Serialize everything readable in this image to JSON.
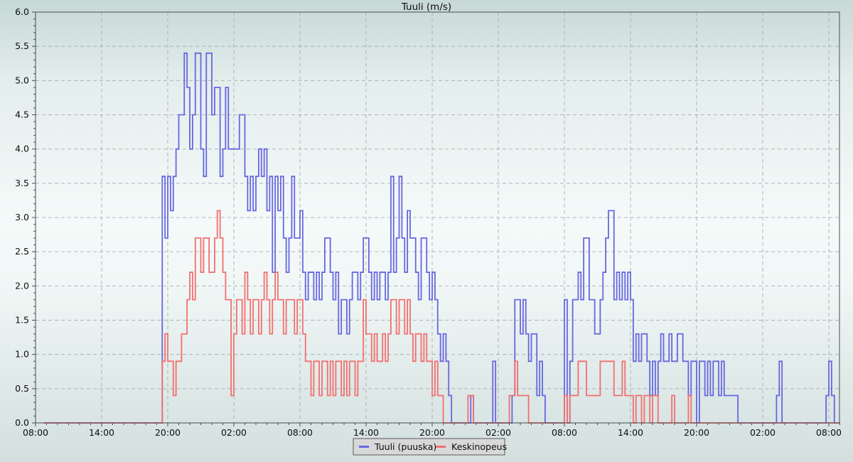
{
  "chart_data": {
    "type": "line",
    "line_style": "step-after",
    "title": "Tuuli (m/s)",
    "xlabel": "",
    "ylabel": "",
    "ylim": [
      0,
      6
    ],
    "y_major_step": 0.5,
    "y_minor_step": 0.1,
    "y_tick_labels": [
      "0.0",
      "0.5",
      "1.0",
      "1.5",
      "2.0",
      "2.5",
      "3.0",
      "3.5",
      "4.0",
      "4.5",
      "5.0",
      "5.5",
      "6.0"
    ],
    "x_tick_labels": [
      "08:00",
      "14:00",
      "20:00",
      "02:00",
      "08:00",
      "14:00",
      "20:00",
      "02:00",
      "08:00",
      "14:00",
      "20:00",
      "02:00",
      "08:00"
    ],
    "x_major_interval_hours": 6,
    "x_minor_interval_hours": 1,
    "x_span_hours": 73,
    "sample_interval_minutes": 15,
    "grid": "dashed major gridlines both axes",
    "legend_position": "bottom-center",
    "background": {
      "top": "#c7d8d7",
      "middle": "#f4faf9",
      "bottom": "#d3e0df"
    },
    "axis_color": "#454c4c",
    "grid_color": "#a3abab",
    "series": [
      {
        "name": "Tuuli (puuska)",
        "color": "#6767e0",
        "values": [
          null,
          null,
          null,
          0,
          0,
          0,
          0,
          0,
          0,
          0,
          0,
          0,
          0,
          0,
          0,
          0,
          0,
          0,
          0,
          0,
          0,
          0,
          0,
          0,
          0,
          0,
          0,
          0,
          0,
          0,
          0,
          0,
          0,
          0,
          0,
          0,
          0,
          0,
          0,
          0,
          0,
          0,
          0,
          0,
          0,
          0,
          3.6,
          2.7,
          3.6,
          3.1,
          3.6,
          4,
          4.5,
          4.5,
          5.4,
          4.9,
          4,
          4.5,
          5.4,
          5.4,
          4,
          3.6,
          5.4,
          5.4,
          4.5,
          4.9,
          4.9,
          3.6,
          4,
          4.9,
          4,
          4,
          4,
          4,
          4.5,
          4.5,
          3.6,
          3.1,
          3.6,
          3.1,
          3.6,
          4,
          3.6,
          4,
          3.1,
          3.6,
          2.2,
          3.6,
          3.1,
          3.6,
          2.7,
          2.2,
          2.7,
          3.6,
          2.7,
          2.7,
          3.1,
          2.2,
          1.8,
          2.2,
          2.2,
          1.8,
          2.2,
          1.8,
          2.2,
          2.7,
          2.7,
          2.2,
          1.8,
          2.2,
          1.3,
          1.8,
          1.8,
          1.3,
          1.8,
          2.2,
          2.2,
          1.8,
          2.2,
          2.7,
          2.7,
          2.2,
          1.8,
          2.2,
          1.8,
          2.2,
          2.2,
          1.8,
          2.2,
          3.6,
          2.2,
          2.7,
          3.6,
          2.7,
          2.2,
          3.1,
          2.7,
          2.7,
          2.2,
          1.8,
          2.7,
          2.7,
          2.2,
          1.8,
          2.2,
          1.8,
          1.3,
          0.9,
          1.3,
          0.9,
          0.4,
          0,
          0,
          0,
          0,
          0,
          0,
          0,
          0.4,
          0,
          0,
          0,
          0,
          0,
          0,
          0,
          0.9,
          0,
          0,
          0,
          0,
          0,
          0,
          0.4,
          1.8,
          1.8,
          1.3,
          1.8,
          1.3,
          0.9,
          1.3,
          1.3,
          0.4,
          0.9,
          0.4,
          0,
          0,
          0,
          0,
          0,
          0,
          0,
          1.8,
          0,
          0.9,
          1.8,
          1.8,
          2.2,
          1.8,
          2.7,
          2.7,
          1.8,
          1.8,
          1.3,
          1.3,
          1.8,
          2.2,
          2.7,
          3.1,
          3.1,
          1.8,
          2.2,
          1.8,
          2.2,
          1.8,
          2.2,
          1.8,
          0.9,
          1.3,
          0.9,
          1.3,
          1.3,
          0.9,
          0.4,
          0.9,
          0.4,
          0.9,
          1.3,
          0.9,
          0.9,
          1.3,
          0.9,
          0.9,
          1.3,
          1.3,
          0.9,
          0.9,
          0.4,
          0.9,
          0.9,
          0,
          0.9,
          0.9,
          0.4,
          0.9,
          0.4,
          0.9,
          0.9,
          0.4,
          0.9,
          0.4,
          0.4,
          0.4,
          0.4,
          0.4,
          0,
          0,
          0,
          0,
          0,
          0,
          0,
          0,
          0,
          0,
          0,
          0,
          0,
          0,
          0.4,
          0.9,
          0,
          0,
          0,
          0,
          0,
          0,
          0,
          0,
          0,
          0,
          0,
          0,
          0,
          0,
          0,
          0,
          0.4,
          0.9,
          0.4,
          0,
          0
        ]
      },
      {
        "name": "Keskinopeus",
        "color": "#f36f6f",
        "values": [
          null,
          null,
          null,
          0,
          0,
          0,
          0,
          0,
          0,
          0,
          0,
          0,
          0,
          0,
          0,
          0,
          0,
          0,
          0,
          0,
          0,
          0,
          0,
          0,
          0,
          0,
          0,
          0,
          0,
          0,
          0,
          0,
          0,
          0,
          0,
          0,
          0,
          0,
          0,
          0,
          0,
          0,
          0,
          0,
          0,
          0,
          0.9,
          1.3,
          0.9,
          0.9,
          0.4,
          0.9,
          0.9,
          1.3,
          1.3,
          1.8,
          2.2,
          1.8,
          2.7,
          2.7,
          2.2,
          2.7,
          2.7,
          2.2,
          2.2,
          2.7,
          3.1,
          2.7,
          2.2,
          1.8,
          1.8,
          0.4,
          1.3,
          1.8,
          1.8,
          1.3,
          2.2,
          1.8,
          1.3,
          1.8,
          1.8,
          1.3,
          1.8,
          2.2,
          1.8,
          1.3,
          1.8,
          2.2,
          1.8,
          1.8,
          1.3,
          1.8,
          1.8,
          1.8,
          1.3,
          1.8,
          1.8,
          1.3,
          0.9,
          0.9,
          0.4,
          0.9,
          0.9,
          0.4,
          0.9,
          0.9,
          0.4,
          0.9,
          0.4,
          0.9,
          0.9,
          0.4,
          0.9,
          0.4,
          0.9,
          0.9,
          0.4,
          0.9,
          0.9,
          1.8,
          1.3,
          1.3,
          0.9,
          1.3,
          0.9,
          0.9,
          1.3,
          0.9,
          1.3,
          1.8,
          1.8,
          1.3,
          1.8,
          1.8,
          1.3,
          1.8,
          1.3,
          0.9,
          1.3,
          1.3,
          0.9,
          1.3,
          0.9,
          0.9,
          0.4,
          0.9,
          0.4,
          0.4,
          0,
          0,
          0,
          0,
          0,
          0,
          0,
          0,
          0,
          0.4,
          0.4,
          0,
          0,
          0,
          0,
          0,
          0,
          0,
          0,
          0,
          0,
          0,
          0,
          0,
          0.4,
          0.4,
          0.9,
          0.4,
          0.4,
          0.4,
          0.4,
          0,
          0,
          0,
          0,
          0,
          0,
          0,
          0,
          0,
          0,
          0,
          0,
          0,
          0.4,
          0,
          0.4,
          0.4,
          0.4,
          0.9,
          0.9,
          0.9,
          0.4,
          0.4,
          0.4,
          0.4,
          0.4,
          0.9,
          0.9,
          0.9,
          0.9,
          0.9,
          0.4,
          0.4,
          0.4,
          0.9,
          0.4,
          0.4,
          0.4,
          0,
          0.4,
          0.4,
          0,
          0.4,
          0.4,
          0,
          0.4,
          0.4,
          0,
          0,
          0,
          0,
          0,
          0.4,
          0,
          0,
          0,
          0,
          0,
          0.4,
          0,
          0,
          0,
          0,
          0,
          0,
          0,
          0,
          0,
          0,
          0,
          0,
          0,
          0,
          0,
          0,
          0,
          0,
          0,
          0,
          0,
          0,
          0,
          0,
          0,
          0,
          0,
          0,
          0,
          0,
          0,
          0,
          0,
          0,
          0,
          0,
          0,
          0,
          0,
          0,
          0,
          0,
          0,
          0,
          0,
          0,
          0,
          0,
          0,
          0,
          0,
          0,
          0,
          0
        ]
      }
    ]
  }
}
